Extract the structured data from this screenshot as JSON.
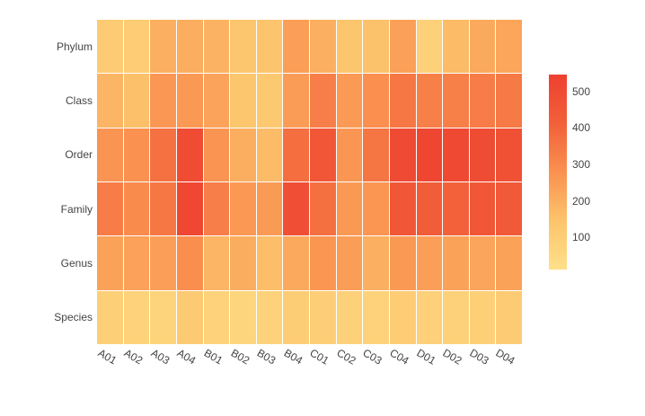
{
  "chart_data": {
    "type": "heatmap",
    "title": "",
    "xlabel": "",
    "ylabel": "",
    "x_categories": [
      "A01",
      "A02",
      "A03",
      "A04",
      "B01",
      "B02",
      "B03",
      "B04",
      "C01",
      "C02",
      "C03",
      "C04",
      "D01",
      "D02",
      "D03",
      "D04"
    ],
    "y_categories": [
      "Phylum",
      "Class",
      "Order",
      "Family",
      "Genus",
      "Species"
    ],
    "values": [
      [
        110,
        105,
        200,
        205,
        190,
        135,
        140,
        245,
        200,
        135,
        150,
        240,
        85,
        170,
        215,
        225
      ],
      [
        185,
        155,
        262,
        258,
        232,
        135,
        128,
        250,
        330,
        255,
        285,
        350,
        328,
        328,
        335,
        342
      ],
      [
        270,
        280,
        365,
        495,
        270,
        205,
        170,
        375,
        455,
        265,
        355,
        505,
        520,
        510,
        498,
        475
      ],
      [
        335,
        295,
        350,
        515,
        330,
        260,
        253,
        485,
        370,
        258,
        268,
        450,
        430,
        410,
        452,
        438
      ],
      [
        235,
        238,
        243,
        288,
        186,
        206,
        160,
        216,
        268,
        247,
        198,
        258,
        243,
        235,
        228,
        234
      ],
      [
        88,
        80,
        70,
        118,
        78,
        65,
        80,
        104,
        96,
        84,
        80,
        106,
        87,
        85,
        94,
        112
      ]
    ],
    "zmin": 12,
    "zmax": 546,
    "colorscale": [
      {
        "pos": 0.0,
        "color": "#fee089"
      },
      {
        "pos": 0.25,
        "color": "#fcc46c"
      },
      {
        "pos": 0.5,
        "color": "#fa9150"
      },
      {
        "pos": 0.75,
        "color": "#f2603a"
      },
      {
        "pos": 1.0,
        "color": "#ee4030"
      }
    ],
    "colorbar_ticks": [
      "100",
      "200",
      "300",
      "400",
      "500"
    ],
    "axis_tick_color": "#444444",
    "grid_line_color": "#ffffff",
    "legend_position": "right",
    "grid": false
  }
}
